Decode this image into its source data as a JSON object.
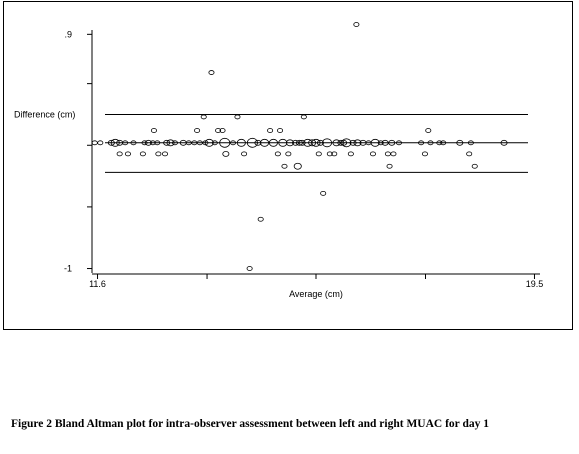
{
  "caption": "Figure 2 Bland Altman plot for intra-observer assessment between left and right MUAC for day 1",
  "chart_data": {
    "type": "scatter",
    "title": "",
    "xlabel": "Average (cm)",
    "ylabel": "Difference (cm)",
    "xlim": [
      11.5,
      19.6
    ],
    "ylim": [
      -1.02,
      1.0
    ],
    "x_tick_labels": [
      {
        "value": 11.6,
        "label": "11.6"
      },
      {
        "value": 19.5,
        "label": "19.5"
      }
    ],
    "y_tick_labels": [
      {
        "value": 0.9,
        "label": ".9"
      },
      {
        "value": -1,
        "label": "-1"
      }
    ],
    "x_ticks": [
      11.6,
      13.58,
      15.55,
      17.53,
      19.5
    ],
    "y_ticks": [
      0.9,
      0.5,
      0.0,
      -0.5,
      -1.0
    ],
    "grid": false,
    "reference_lines": [
      {
        "name": "upper limit of agreement",
        "y": 0.25
      },
      {
        "name": "mean difference",
        "y": 0.02
      },
      {
        "name": "lower limit of agreement",
        "y": -0.22
      }
    ],
    "points": [
      {
        "x": 11.55,
        "y": 0.02,
        "r": 2
      },
      {
        "x": 11.65,
        "y": 0.02,
        "r": 2
      },
      {
        "x": 11.85,
        "y": 0.02,
        "r": 2.5
      },
      {
        "x": 11.92,
        "y": 0.02,
        "r": 3.5
      },
      {
        "x": 12.0,
        "y": 0.02,
        "r": 2.5
      },
      {
        "x": 12.1,
        "y": 0.02,
        "r": 2
      },
      {
        "x": 12.0,
        "y": -0.07,
        "r": 2
      },
      {
        "x": 12.15,
        "y": -0.07,
        "r": 2
      },
      {
        "x": 12.25,
        "y": 0.02,
        "r": 2
      },
      {
        "x": 12.45,
        "y": 0.02,
        "r": 2
      },
      {
        "x": 12.52,
        "y": 0.02,
        "r": 2.5
      },
      {
        "x": 12.6,
        "y": 0.02,
        "r": 2
      },
      {
        "x": 12.68,
        "y": 0.02,
        "r": 2
      },
      {
        "x": 12.42,
        "y": -0.07,
        "r": 2
      },
      {
        "x": 12.62,
        "y": 0.12,
        "r": 2
      },
      {
        "x": 12.7,
        "y": -0.07,
        "r": 2
      },
      {
        "x": 12.82,
        "y": -0.07,
        "r": 2
      },
      {
        "x": 12.85,
        "y": 0.02,
        "r": 2.5
      },
      {
        "x": 12.92,
        "y": 0.02,
        "r": 3
      },
      {
        "x": 13.0,
        "y": 0.02,
        "r": 2
      },
      {
        "x": 13.15,
        "y": 0.02,
        "r": 2.5
      },
      {
        "x": 13.25,
        "y": 0.02,
        "r": 2
      },
      {
        "x": 13.35,
        "y": 0.02,
        "r": 2
      },
      {
        "x": 13.4,
        "y": 0.12,
        "r": 2
      },
      {
        "x": 13.45,
        "y": 0.02,
        "r": 2
      },
      {
        "x": 13.55,
        "y": 0.02,
        "r": 2
      },
      {
        "x": 13.52,
        "y": 0.23,
        "r": 2
      },
      {
        "x": 13.62,
        "y": 0.02,
        "r": 3.5
      },
      {
        "x": 13.66,
        "y": 0.59,
        "r": 2
      },
      {
        "x": 13.72,
        "y": 0.02,
        "r": 2
      },
      {
        "x": 13.78,
        "y": 0.12,
        "r": 2
      },
      {
        "x": 13.86,
        "y": 0.12,
        "r": 2
      },
      {
        "x": 13.9,
        "y": 0.02,
        "r": 4.5
      },
      {
        "x": 13.92,
        "y": -0.07,
        "r": 2.5
      },
      {
        "x": 14.05,
        "y": 0.02,
        "r": 2
      },
      {
        "x": 14.13,
        "y": 0.23,
        "r": 2
      },
      {
        "x": 14.2,
        "y": 0.02,
        "r": 3.5
      },
      {
        "x": 14.25,
        "y": -0.07,
        "r": 2
      },
      {
        "x": 14.35,
        "y": -1.0,
        "r": 2
      },
      {
        "x": 14.4,
        "y": 0.02,
        "r": 4.5
      },
      {
        "x": 14.5,
        "y": 0.02,
        "r": 2.5
      },
      {
        "x": 14.55,
        "y": -0.6,
        "r": 2
      },
      {
        "x": 14.62,
        "y": 0.02,
        "r": 3.5
      },
      {
        "x": 14.72,
        "y": 0.12,
        "r": 2
      },
      {
        "x": 14.78,
        "y": 0.02,
        "r": 3.5
      },
      {
        "x": 14.86,
        "y": -0.07,
        "r": 2
      },
      {
        "x": 14.9,
        "y": 0.12,
        "r": 2
      },
      {
        "x": 14.95,
        "y": 0.02,
        "r": 3.5
      },
      {
        "x": 14.98,
        "y": -0.17,
        "r": 2
      },
      {
        "x": 15.05,
        "y": -0.07,
        "r": 2
      },
      {
        "x": 15.08,
        "y": 0.02,
        "r": 3
      },
      {
        "x": 15.18,
        "y": 0.02,
        "r": 2.5
      },
      {
        "x": 15.22,
        "y": -0.17,
        "r": 3
      },
      {
        "x": 15.25,
        "y": 0.02,
        "r": 2.5
      },
      {
        "x": 15.3,
        "y": 0.02,
        "r": 2.5
      },
      {
        "x": 15.33,
        "y": 0.23,
        "r": 2
      },
      {
        "x": 15.4,
        "y": 0.02,
        "r": 3.5
      },
      {
        "x": 15.48,
        "y": 0.02,
        "r": 3
      },
      {
        "x": 15.55,
        "y": 0.02,
        "r": 3.5
      },
      {
        "x": 15.6,
        "y": -0.07,
        "r": 2
      },
      {
        "x": 15.63,
        "y": 0.02,
        "r": 2.5
      },
      {
        "x": 15.68,
        "y": -0.39,
        "r": 2
      },
      {
        "x": 15.75,
        "y": 0.02,
        "r": 4
      },
      {
        "x": 15.8,
        "y": -0.07,
        "r": 2
      },
      {
        "x": 15.88,
        "y": -0.07,
        "r": 2
      },
      {
        "x": 15.92,
        "y": 0.02,
        "r": 3
      },
      {
        "x": 16.0,
        "y": 0.02,
        "r": 2.5
      },
      {
        "x": 16.05,
        "y": 0.02,
        "r": 2.5
      },
      {
        "x": 16.1,
        "y": 0.02,
        "r": 4
      },
      {
        "x": 16.18,
        "y": -0.07,
        "r": 2
      },
      {
        "x": 16.22,
        "y": 0.02,
        "r": 2.5
      },
      {
        "x": 16.28,
        "y": 0.98,
        "r": 2
      },
      {
        "x": 16.3,
        "y": 0.02,
        "r": 3
      },
      {
        "x": 16.4,
        "y": 0.02,
        "r": 2.5
      },
      {
        "x": 16.5,
        "y": 0.02,
        "r": 2
      },
      {
        "x": 16.58,
        "y": -0.07,
        "r": 2
      },
      {
        "x": 16.62,
        "y": 0.02,
        "r": 3.5
      },
      {
        "x": 16.72,
        "y": 0.02,
        "r": 2
      },
      {
        "x": 16.8,
        "y": 0.02,
        "r": 2.5
      },
      {
        "x": 16.85,
        "y": -0.07,
        "r": 2
      },
      {
        "x": 16.88,
        "y": -0.17,
        "r": 2
      },
      {
        "x": 16.92,
        "y": 0.02,
        "r": 2.5
      },
      {
        "x": 16.95,
        "y": -0.07,
        "r": 2
      },
      {
        "x": 17.05,
        "y": 0.02,
        "r": 2
      },
      {
        "x": 17.45,
        "y": 0.02,
        "r": 2
      },
      {
        "x": 17.52,
        "y": -0.07,
        "r": 2
      },
      {
        "x": 17.58,
        "y": 0.12,
        "r": 2
      },
      {
        "x": 17.62,
        "y": 0.02,
        "r": 2
      },
      {
        "x": 17.78,
        "y": 0.02,
        "r": 2
      },
      {
        "x": 17.85,
        "y": 0.02,
        "r": 2
      },
      {
        "x": 18.15,
        "y": 0.02,
        "r": 2.5
      },
      {
        "x": 18.32,
        "y": -0.07,
        "r": 2
      },
      {
        "x": 18.35,
        "y": 0.02,
        "r": 2
      },
      {
        "x": 18.42,
        "y": -0.17,
        "r": 2
      },
      {
        "x": 18.95,
        "y": 0.02,
        "r": 2.5
      }
    ]
  }
}
